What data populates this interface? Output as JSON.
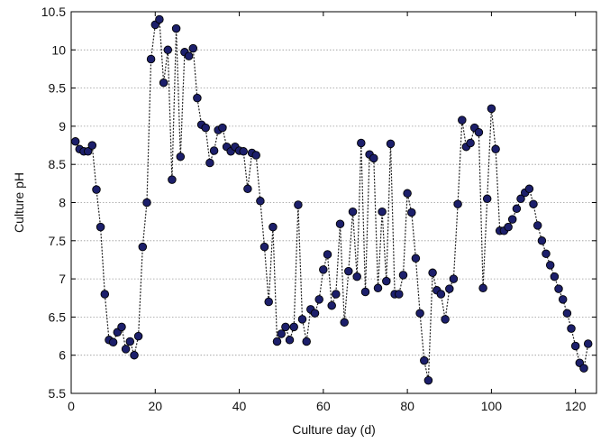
{
  "chart_data": {
    "type": "scatter",
    "title": "",
    "xlabel": "Culture day (d)",
    "ylabel": "Culture pH",
    "xlim": [
      0,
      125
    ],
    "ylim": [
      5.5,
      10.5
    ],
    "xticks": [
      0,
      20,
      40,
      60,
      80,
      100,
      120
    ],
    "yticks": [
      5.5,
      6,
      6.5,
      7,
      7.5,
      8,
      8.5,
      9,
      9.5,
      10,
      10.5
    ],
    "xtick_labels": [
      "0",
      "20",
      "40",
      "60",
      "80",
      "100",
      "120"
    ],
    "ytick_labels": [
      "5.5",
      "6",
      "6.5",
      "7",
      "7.5",
      "8",
      "8.5",
      "9",
      "9.5",
      "10",
      "10.5"
    ],
    "grid": "horizontal dotted",
    "legend": "none",
    "colors": {
      "marker_fill": "#1c1f6b",
      "marker_edge": "#000000",
      "line": "#222222"
    },
    "series": [
      {
        "x": [
          1,
          2,
          3,
          4,
          5,
          6,
          7,
          8,
          9,
          10,
          11,
          12,
          13,
          14,
          15,
          16,
          17,
          18,
          19,
          20,
          21,
          22,
          23,
          24,
          25,
          26,
          27,
          28,
          29,
          30,
          31,
          32,
          33,
          34,
          35,
          36,
          37,
          38,
          39,
          40,
          41,
          42,
          43,
          44,
          45,
          46,
          47,
          48,
          49,
          50,
          51,
          52,
          53,
          54,
          55,
          56,
          57,
          58,
          59,
          60,
          61,
          62,
          63,
          64,
          65,
          66,
          67,
          68,
          69,
          70,
          71,
          72,
          73,
          74,
          75,
          76,
          77,
          78,
          79,
          80,
          81,
          82,
          83,
          84,
          85,
          86,
          87,
          88,
          89,
          90,
          91,
          92,
          93,
          94,
          95,
          96,
          97,
          98,
          99,
          100,
          101,
          102,
          103,
          104,
          105,
          106,
          107,
          108,
          109,
          110,
          111,
          112,
          113,
          114,
          115,
          116,
          117,
          118,
          119,
          120,
          121,
          122,
          123
        ],
        "y": [
          8.8,
          8.7,
          8.67,
          8.67,
          8.75,
          8.17,
          7.68,
          6.8,
          6.2,
          6.17,
          6.3,
          6.37,
          6.08,
          6.18,
          6.0,
          6.25,
          7.42,
          8.0,
          9.88,
          10.33,
          10.4,
          9.57,
          10.0,
          8.3,
          10.28,
          8.6,
          9.97,
          9.92,
          10.02,
          9.37,
          9.02,
          8.98,
          8.52,
          8.68,
          8.95,
          8.98,
          8.73,
          8.67,
          8.73,
          8.68,
          8.67,
          8.18,
          8.65,
          8.62,
          8.02,
          7.42,
          6.7,
          7.68,
          6.18,
          6.28,
          6.37,
          6.2,
          6.37,
          7.97,
          6.47,
          6.18,
          6.6,
          6.55,
          6.73,
          7.12,
          7.32,
          6.65,
          6.8,
          7.72,
          6.43,
          7.1,
          7.88,
          7.03,
          8.78,
          6.83,
          8.63,
          8.58,
          6.88,
          7.88,
          6.97,
          8.77,
          6.8,
          6.8,
          7.05,
          8.12,
          7.87,
          7.27,
          6.55,
          5.93,
          5.67,
          7.08,
          6.85,
          6.8,
          6.47,
          6.87,
          7.0,
          7.98,
          9.08,
          8.73,
          8.78,
          8.98,
          8.92,
          6.88,
          8.05,
          9.23,
          8.7,
          7.63,
          7.63,
          7.68,
          7.78,
          7.92,
          8.05,
          8.13,
          8.18,
          7.98,
          7.7,
          7.5,
          7.33,
          7.18,
          7.03,
          6.87,
          6.73,
          6.55,
          6.35,
          6.12,
          5.9,
          5.83,
          6.15
        ]
      }
    ]
  }
}
